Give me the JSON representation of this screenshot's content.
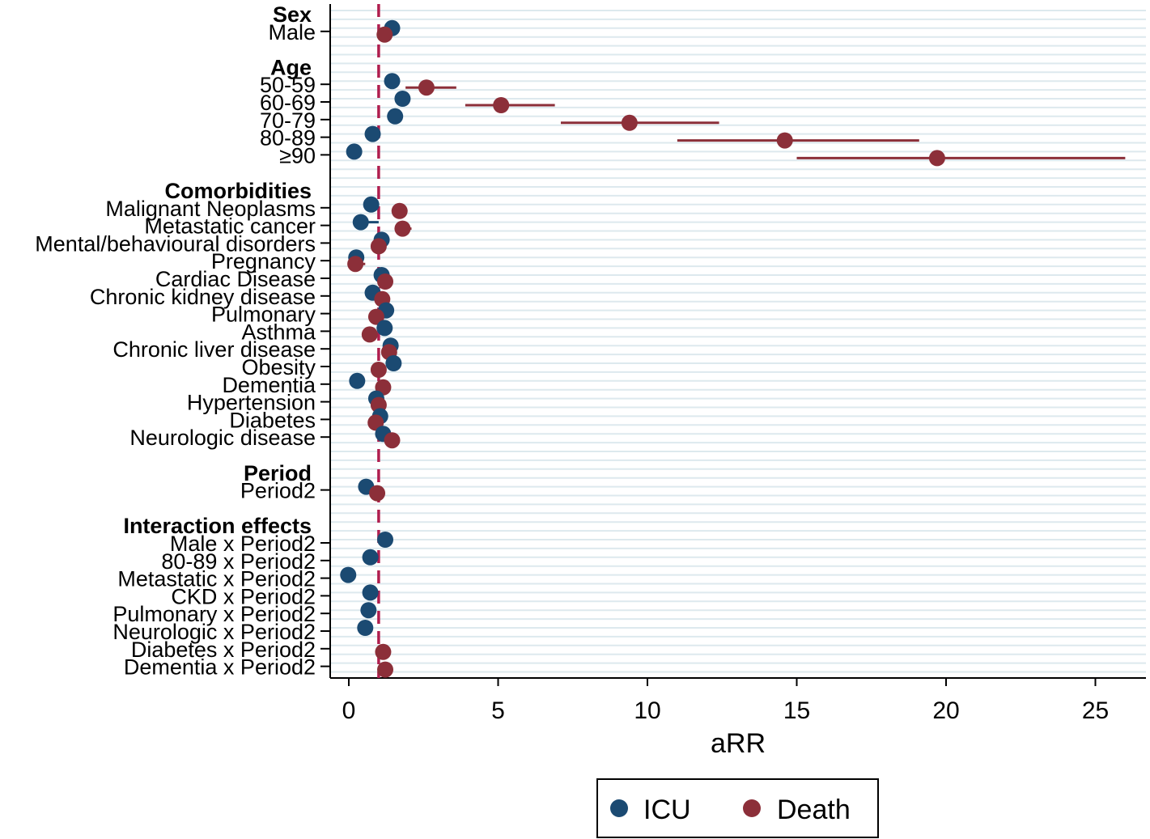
{
  "chart_data": {
    "type": "scatter",
    "subtype": "forest-plot",
    "xlabel": "aRR",
    "xlim": [
      -0.5,
      26.5
    ],
    "xticks": [
      0,
      5,
      10,
      15,
      20,
      25
    ],
    "reference_line": 1,
    "colors": {
      "ICU": "#1b4a72",
      "Death": "#8c2f39",
      "reference": "#b01e4f"
    },
    "legend": {
      "position": "bottom-center",
      "entries": [
        "ICU",
        "Death"
      ]
    },
    "rows": [
      {
        "label": "Sex",
        "type": "section"
      },
      {
        "label": "Male",
        "icu": 1.45,
        "death": 1.2
      },
      {
        "label": "",
        "type": "gap"
      },
      {
        "label": "Age",
        "type": "section"
      },
      {
        "label": "50-59",
        "icu": 1.45,
        "death": 2.6,
        "death_ci": [
          1.9,
          3.6
        ]
      },
      {
        "label": "60-69",
        "icu": 1.8,
        "death": 5.1,
        "death_ci": [
          3.9,
          6.9
        ]
      },
      {
        "label": "70-79",
        "icu": 1.55,
        "death": 9.4,
        "death_ci": [
          7.1,
          12.4
        ]
      },
      {
        "label": "80-89",
        "icu": 0.8,
        "death": 14.6,
        "death_ci": [
          11.0,
          19.1
        ]
      },
      {
        "label": "≥90",
        "icu": 0.18,
        "death": 19.7,
        "death_ci": [
          15.0,
          26.0
        ]
      },
      {
        "label": "",
        "type": "gap"
      },
      {
        "label": "Comorbidities",
        "type": "section"
      },
      {
        "label": "Malignant Neoplasms",
        "icu": 0.75,
        "death": 1.7
      },
      {
        "label": "Metastatic cancer",
        "icu": 0.4,
        "icu_ci": [
          0.2,
          1.0
        ],
        "death": 1.8,
        "death_ci": [
          1.55,
          2.1
        ]
      },
      {
        "label": "Mental/behavioural disorders",
        "icu": 1.1,
        "death": 1.0
      },
      {
        "label": "Pregnancy",
        "icu": 0.25,
        "death": 0.22,
        "death_ci": [
          0.05,
          0.55
        ]
      },
      {
        "label": "Cardiac Disease",
        "icu": 1.1,
        "death": 1.22
      },
      {
        "label": "Chronic kidney disease",
        "icu": 0.8,
        "death": 1.12
      },
      {
        "label": "Pulmonary",
        "icu": 1.25,
        "death": 0.92
      },
      {
        "label": "Asthma",
        "icu": 1.2,
        "death": 0.7
      },
      {
        "label": "Chronic liver disease",
        "icu": 1.4,
        "death": 1.35
      },
      {
        "label": "Obesity",
        "icu": 1.5,
        "death": 1.0
      },
      {
        "label": "Dementia",
        "icu": 0.28,
        "death": 1.15
      },
      {
        "label": "Hypertension",
        "icu": 0.92,
        "death": 1.0
      },
      {
        "label": "Diabetes",
        "icu": 1.05,
        "death": 0.9
      },
      {
        "label": "Neurologic disease",
        "icu": 1.15,
        "death": 1.45
      },
      {
        "label": "",
        "type": "gap"
      },
      {
        "label": "Period",
        "type": "section"
      },
      {
        "label": "Period2",
        "icu": 0.58,
        "death": 0.95
      },
      {
        "label": "",
        "type": "gap"
      },
      {
        "label": "Interaction effects",
        "type": "section"
      },
      {
        "label": "Male x Period2",
        "icu": 1.22
      },
      {
        "label": "80-89 x Period2",
        "icu": 0.72
      },
      {
        "label": "Metastatic x Period2",
        "icu": -0.02
      },
      {
        "label": "CKD x Period2",
        "icu": 0.72
      },
      {
        "label": "Pulmonary x Period2",
        "icu": 0.66
      },
      {
        "label": "Neurologic x Period2",
        "icu": 0.55
      },
      {
        "label": "Diabetes x Period2",
        "death": 1.15
      },
      {
        "label": "Dementia x Period2",
        "death": 1.22
      }
    ]
  }
}
